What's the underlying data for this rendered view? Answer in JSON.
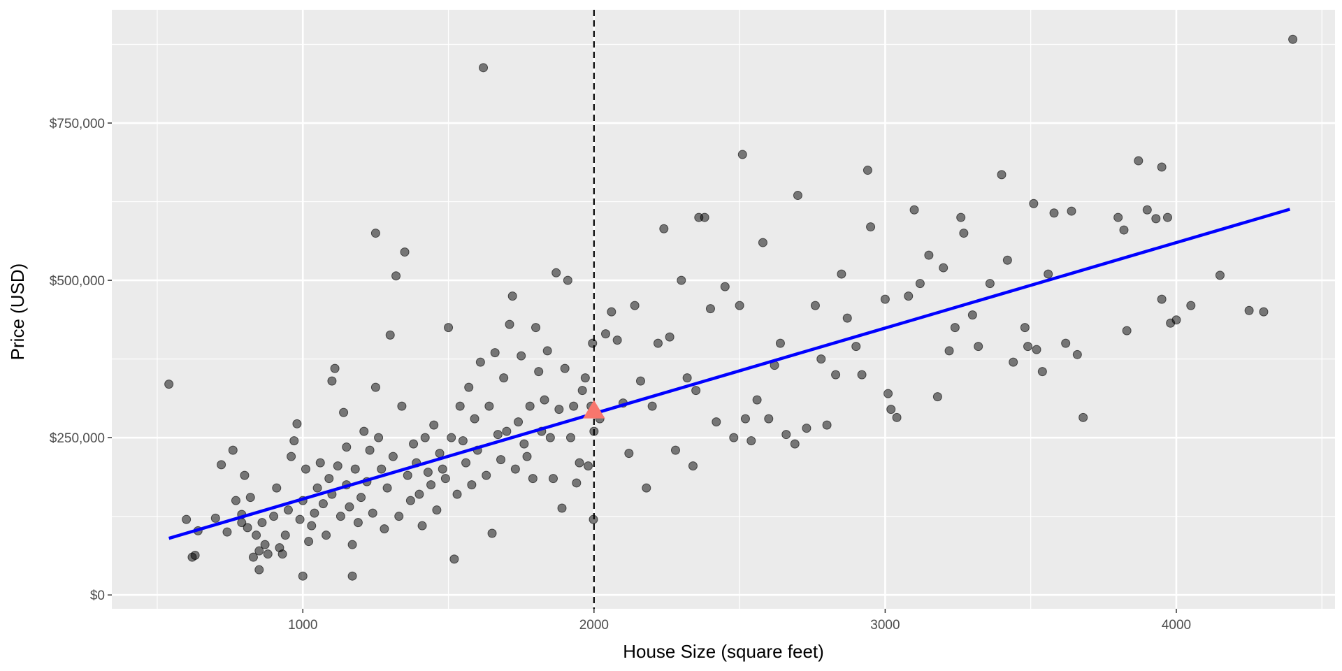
{
  "chart_data": {
    "type": "scatter",
    "xlabel": "House Size (square feet)",
    "ylabel": "Price (USD)",
    "xlim": [
      344,
      4545
    ],
    "ylim": [
      -22000,
      930000
    ],
    "x_ticks": [
      1000,
      2000,
      3000,
      4000
    ],
    "x_tick_labels": [
      "1000",
      "2000",
      "3000",
      "4000"
    ],
    "y_ticks": [
      0,
      250000,
      500000,
      750000
    ],
    "y_tick_labels": [
      "$0",
      "$250,000",
      "$500,000",
      "$750,000"
    ],
    "grid": true,
    "legend": "none",
    "vline_x": 2000,
    "highlight_point": {
      "x": 2000,
      "y": 293000
    },
    "fit_line": {
      "x": [
        540,
        4390
      ],
      "y": [
        90000,
        613000
      ]
    },
    "points": [
      [
        540,
        335000
      ],
      [
        600,
        120000
      ],
      [
        620,
        60000
      ],
      [
        630,
        63000
      ],
      [
        640,
        102000
      ],
      [
        700,
        122000
      ],
      [
        720,
        207000
      ],
      [
        740,
        100000
      ],
      [
        760,
        230000
      ],
      [
        770,
        150000
      ],
      [
        790,
        115000
      ],
      [
        790,
        128000
      ],
      [
        800,
        190000
      ],
      [
        810,
        107000
      ],
      [
        820,
        155000
      ],
      [
        830,
        60000
      ],
      [
        840,
        95000
      ],
      [
        850,
        70000
      ],
      [
        850,
        40000
      ],
      [
        860,
        115000
      ],
      [
        870,
        80000
      ],
      [
        880,
        65000
      ],
      [
        900,
        125000
      ],
      [
        910,
        170000
      ],
      [
        920,
        75000
      ],
      [
        930,
        65000
      ],
      [
        940,
        95000
      ],
      [
        950,
        135000
      ],
      [
        960,
        220000
      ],
      [
        970,
        245000
      ],
      [
        980,
        272000
      ],
      [
        990,
        120000
      ],
      [
        1000,
        30000
      ],
      [
        1000,
        150000
      ],
      [
        1010,
        200000
      ],
      [
        1020,
        85000
      ],
      [
        1030,
        110000
      ],
      [
        1040,
        130000
      ],
      [
        1050,
        170000
      ],
      [
        1060,
        210000
      ],
      [
        1070,
        145000
      ],
      [
        1080,
        95000
      ],
      [
        1090,
        185000
      ],
      [
        1100,
        160000
      ],
      [
        1100,
        340000
      ],
      [
        1110,
        360000
      ],
      [
        1120,
        205000
      ],
      [
        1130,
        125000
      ],
      [
        1140,
        290000
      ],
      [
        1150,
        175000
      ],
      [
        1150,
        235000
      ],
      [
        1160,
        140000
      ],
      [
        1170,
        80000
      ],
      [
        1170,
        30000
      ],
      [
        1180,
        200000
      ],
      [
        1190,
        115000
      ],
      [
        1200,
        155000
      ],
      [
        1210,
        260000
      ],
      [
        1220,
        180000
      ],
      [
        1230,
        230000
      ],
      [
        1240,
        130000
      ],
      [
        1250,
        330000
      ],
      [
        1250,
        575000
      ],
      [
        1260,
        250000
      ],
      [
        1270,
        200000
      ],
      [
        1280,
        105000
      ],
      [
        1290,
        170000
      ],
      [
        1300,
        413000
      ],
      [
        1310,
        220000
      ],
      [
        1320,
        507000
      ],
      [
        1330,
        125000
      ],
      [
        1340,
        300000
      ],
      [
        1350,
        545000
      ],
      [
        1360,
        190000
      ],
      [
        1370,
        150000
      ],
      [
        1380,
        240000
      ],
      [
        1390,
        210000
      ],
      [
        1400,
        160000
      ],
      [
        1410,
        110000
      ],
      [
        1420,
        250000
      ],
      [
        1430,
        195000
      ],
      [
        1440,
        175000
      ],
      [
        1450,
        270000
      ],
      [
        1460,
        135000
      ],
      [
        1470,
        225000
      ],
      [
        1480,
        200000
      ],
      [
        1490,
        185000
      ],
      [
        1500,
        425000
      ],
      [
        1510,
        250000
      ],
      [
        1520,
        57000
      ],
      [
        1530,
        160000
      ],
      [
        1540,
        300000
      ],
      [
        1550,
        245000
      ],
      [
        1560,
        210000
      ],
      [
        1570,
        330000
      ],
      [
        1580,
        175000
      ],
      [
        1590,
        280000
      ],
      [
        1600,
        230000
      ],
      [
        1610,
        370000
      ],
      [
        1620,
        838000
      ],
      [
        1630,
        190000
      ],
      [
        1640,
        300000
      ],
      [
        1650,
        98000
      ],
      [
        1660,
        385000
      ],
      [
        1670,
        255000
      ],
      [
        1680,
        215000
      ],
      [
        1690,
        345000
      ],
      [
        1700,
        260000
      ],
      [
        1710,
        430000
      ],
      [
        1720,
        475000
      ],
      [
        1730,
        200000
      ],
      [
        1740,
        275000
      ],
      [
        1750,
        380000
      ],
      [
        1760,
        240000
      ],
      [
        1770,
        220000
      ],
      [
        1780,
        300000
      ],
      [
        1790,
        185000
      ],
      [
        1800,
        425000
      ],
      [
        1810,
        355000
      ],
      [
        1820,
        260000
      ],
      [
        1830,
        310000
      ],
      [
        1840,
        388000
      ],
      [
        1850,
        250000
      ],
      [
        1860,
        185000
      ],
      [
        1870,
        512000
      ],
      [
        1880,
        295000
      ],
      [
        1890,
        138000
      ],
      [
        1900,
        360000
      ],
      [
        1910,
        500000
      ],
      [
        1920,
        250000
      ],
      [
        1930,
        300000
      ],
      [
        1940,
        178000
      ],
      [
        1950,
        210000
      ],
      [
        1960,
        325000
      ],
      [
        1970,
        345000
      ],
      [
        1980,
        205000
      ],
      [
        1990,
        300000
      ],
      [
        1995,
        400000
      ],
      [
        1998,
        120000
      ],
      [
        2000,
        260000
      ],
      [
        2020,
        280000
      ],
      [
        2040,
        415000
      ],
      [
        2060,
        450000
      ],
      [
        2080,
        405000
      ],
      [
        2100,
        305000
      ],
      [
        2120,
        225000
      ],
      [
        2140,
        460000
      ],
      [
        2160,
        340000
      ],
      [
        2180,
        170000
      ],
      [
        2200,
        300000
      ],
      [
        2220,
        400000
      ],
      [
        2240,
        582000
      ],
      [
        2260,
        410000
      ],
      [
        2280,
        230000
      ],
      [
        2300,
        500000
      ],
      [
        2320,
        345000
      ],
      [
        2340,
        205000
      ],
      [
        2350,
        325000
      ],
      [
        2360,
        600000
      ],
      [
        2380,
        600000
      ],
      [
        2400,
        455000
      ],
      [
        2420,
        275000
      ],
      [
        2450,
        490000
      ],
      [
        2480,
        250000
      ],
      [
        2500,
        460000
      ],
      [
        2510,
        700000
      ],
      [
        2520,
        280000
      ],
      [
        2540,
        245000
      ],
      [
        2560,
        310000
      ],
      [
        2580,
        560000
      ],
      [
        2600,
        280000
      ],
      [
        2620,
        365000
      ],
      [
        2640,
        400000
      ],
      [
        2660,
        255000
      ],
      [
        2690,
        240000
      ],
      [
        2700,
        635000
      ],
      [
        2730,
        265000
      ],
      [
        2760,
        460000
      ],
      [
        2780,
        375000
      ],
      [
        2800,
        270000
      ],
      [
        2830,
        350000
      ],
      [
        2850,
        510000
      ],
      [
        2870,
        440000
      ],
      [
        2900,
        395000
      ],
      [
        2920,
        350000
      ],
      [
        2940,
        675000
      ],
      [
        2950,
        585000
      ],
      [
        3000,
        470000
      ],
      [
        3010,
        320000
      ],
      [
        3020,
        295000
      ],
      [
        3040,
        282000
      ],
      [
        3080,
        475000
      ],
      [
        3100,
        612000
      ],
      [
        3120,
        495000
      ],
      [
        3150,
        540000
      ],
      [
        3180,
        315000
      ],
      [
        3200,
        520000
      ],
      [
        3220,
        388000
      ],
      [
        3240,
        425000
      ],
      [
        3260,
        600000
      ],
      [
        3270,
        575000
      ],
      [
        3300,
        445000
      ],
      [
        3320,
        395000
      ],
      [
        3360,
        495000
      ],
      [
        3400,
        668000
      ],
      [
        3420,
        532000
      ],
      [
        3440,
        370000
      ],
      [
        3480,
        425000
      ],
      [
        3490,
        395000
      ],
      [
        3510,
        622000
      ],
      [
        3520,
        390000
      ],
      [
        3540,
        355000
      ],
      [
        3560,
        510000
      ],
      [
        3580,
        607000
      ],
      [
        3620,
        400000
      ],
      [
        3640,
        610000
      ],
      [
        3660,
        382000
      ],
      [
        3680,
        282000
      ],
      [
        3800,
        600000
      ],
      [
        3820,
        580000
      ],
      [
        3830,
        420000
      ],
      [
        3870,
        690000
      ],
      [
        3900,
        612000
      ],
      [
        3930,
        598000
      ],
      [
        3950,
        470000
      ],
      [
        3950,
        680000
      ],
      [
        3970,
        600000
      ],
      [
        3980,
        432000
      ],
      [
        4000,
        437000
      ],
      [
        4050,
        460000
      ],
      [
        4150,
        508000
      ],
      [
        4250,
        452000
      ],
      [
        4300,
        450000
      ],
      [
        4400,
        883000
      ]
    ]
  }
}
